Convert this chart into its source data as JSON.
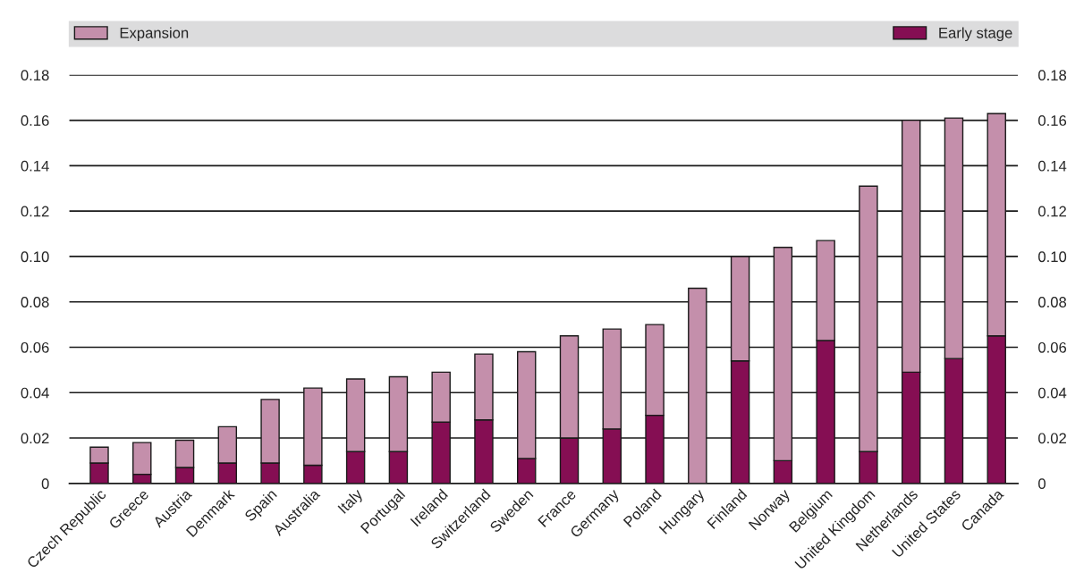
{
  "chart_data": {
    "type": "bar",
    "stacked": true,
    "categories": [
      "Czech Republic",
      "Greece",
      "Austria",
      "Denmark",
      "Spain",
      "Australia",
      "Italy",
      "Portugal",
      "Ireland",
      "Switzerland",
      "Sweden",
      "France",
      "Germany",
      "Poland",
      "Hungary",
      "Finland",
      "Norway",
      "Belgium",
      "United Kingdom",
      "Netherlands",
      "United States",
      "Canada"
    ],
    "series": [
      {
        "name": "Early stage",
        "color": "#850e53",
        "values": [
          0.009,
          0.004,
          0.007,
          0.009,
          0.009,
          0.008,
          0.014,
          0.014,
          0.027,
          0.028,
          0.011,
          0.02,
          0.024,
          0.03,
          0.0,
          0.054,
          0.01,
          0.063,
          0.014,
          0.049,
          0.055,
          0.065
        ]
      },
      {
        "name": "Expansion",
        "color": "#c48fab",
        "values": [
          0.007,
          0.014,
          0.012,
          0.016,
          0.028,
          0.034,
          0.032,
          0.033,
          0.022,
          0.029,
          0.047,
          0.045,
          0.044,
          0.04,
          0.086,
          0.046,
          0.094,
          0.044,
          0.117,
          0.111,
          0.106,
          0.098
        ]
      }
    ],
    "ylim": [
      0,
      0.18
    ],
    "yticks": [
      0,
      {
        "value": 0.02,
        "label": "0.02"
      },
      {
        "value": 0.04,
        "label": "0.04"
      },
      {
        "value": 0.06,
        "label": "0.06"
      },
      {
        "value": 0.08,
        "label": "0.08"
      },
      {
        "value": 0.1,
        "label": "0.10"
      },
      {
        "value": 0.12,
        "label": "0.12"
      },
      {
        "value": 0.14,
        "label": "0.14"
      },
      {
        "value": 0.16,
        "label": "0.16"
      },
      {
        "value": 0.18,
        "label": "0.18"
      }
    ],
    "y2lim": [
      0,
      0.18
    ],
    "y2ticks": [
      0,
      {
        "value": 0.02,
        "label": "0.02"
      },
      {
        "value": 0.04,
        "label": "0.04"
      },
      {
        "value": 0.06,
        "label": "0.06"
      },
      {
        "value": 0.08,
        "label": "0.08"
      },
      {
        "value": 0.1,
        "label": "0.10"
      },
      {
        "value": 0.12,
        "label": "0.12"
      },
      {
        "value": 0.14,
        "label": "0.14"
      },
      {
        "value": 0.16,
        "label": "0.16"
      },
      {
        "value": 0.18,
        "label": "0.18"
      }
    ],
    "grid": "y",
    "legend": "top"
  }
}
